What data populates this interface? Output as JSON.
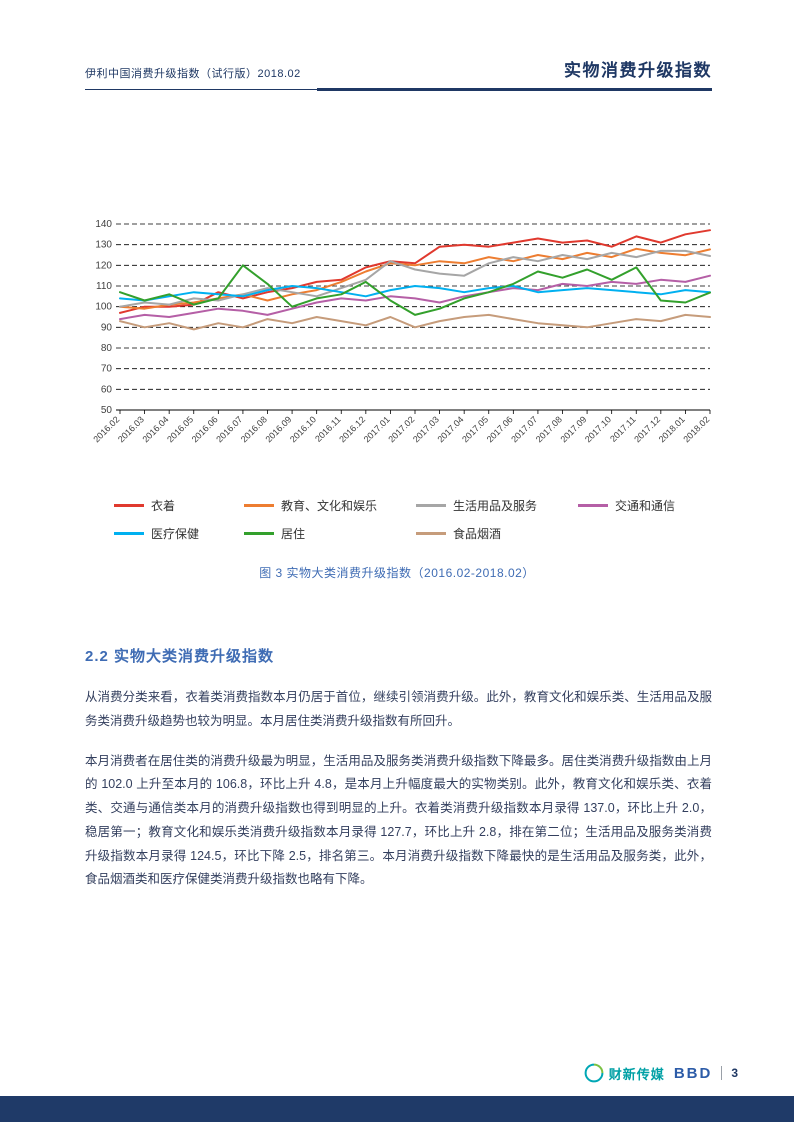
{
  "header": {
    "left_title": "伊利中国消费升级指数（试行版）2018.02",
    "right_title": "实物消费升级指数"
  },
  "chart_data": {
    "type": "line",
    "title": "实物大类消费升级指数",
    "xlabel": "",
    "ylabel": "",
    "ylim": [
      50,
      140
    ],
    "ytick_step": 10,
    "grid": "dashed-horizontal",
    "legend_position": "bottom",
    "x": [
      "2016.02",
      "2016.03",
      "2016.04",
      "2016.05",
      "2016.06",
      "2016.07",
      "2016.08",
      "2016.09",
      "2016.10",
      "2016.11",
      "2016.12",
      "2017.01",
      "2017.02",
      "2017.03",
      "2017.04",
      "2017.05",
      "2017.06",
      "2017.07",
      "2017.08",
      "2017.09",
      "2017.10",
      "2017.11",
      "2017.12",
      "2018.01",
      "2018.02"
    ],
    "series": [
      {
        "name": "衣着",
        "color": "#e0392e",
        "values": [
          97,
          100,
          100,
          101,
          107,
          104,
          107,
          109,
          112,
          113,
          119,
          122,
          121,
          129,
          130,
          129,
          131,
          133,
          131,
          132,
          129,
          134,
          131,
          135,
          137
        ]
      },
      {
        "name": "教育、文化和娱乐",
        "color": "#ed7d31",
        "values": [
          100,
          99,
          101,
          102,
          104,
          106,
          103,
          106,
          108,
          112,
          117,
          121,
          120,
          122,
          121,
          124,
          122,
          125,
          123,
          126,
          124,
          128,
          126,
          124.9,
          127.7
        ]
      },
      {
        "name": "生活用品及服务",
        "color": "#a6a6a6",
        "values": [
          100,
          102,
          101,
          104,
          103,
          106,
          109,
          107,
          105,
          109,
          113,
          122,
          118,
          116,
          115,
          121,
          124,
          122,
          125,
          123,
          126,
          124,
          127,
          127,
          124.5
        ]
      },
      {
        "name": "交通和通信",
        "color": "#b55fa6",
        "values": [
          94,
          96,
          95,
          97,
          99,
          98,
          96,
          99,
          102,
          104,
          103,
          105,
          104,
          102,
          105,
          107,
          109,
          108,
          111,
          110,
          112,
          111,
          113,
          112,
          115
        ]
      },
      {
        "name": "医疗保健",
        "color": "#00b0f0",
        "values": [
          104,
          103,
          105,
          107,
          106,
          105,
          108,
          110,
          109,
          107,
          105,
          108,
          110,
          109,
          107,
          109,
          110,
          107,
          108,
          109,
          108,
          107,
          106,
          108,
          107
        ]
      },
      {
        "name": "居住",
        "color": "#33a02c",
        "values": [
          107,
          103,
          106,
          101,
          104,
          120,
          111,
          100,
          104,
          106,
          112,
          103,
          96,
          99,
          104,
          107,
          111,
          117,
          114,
          118,
          113,
          119,
          103,
          102,
          106.8
        ]
      },
      {
        "name": "食品烟酒",
        "color": "#c69c7b",
        "values": [
          93,
          90,
          92,
          89,
          92,
          90,
          94,
          92,
          95,
          93,
          91,
          95,
          90,
          93,
          95,
          96,
          94,
          92,
          91,
          90,
          92,
          94,
          93,
          96,
          95
        ]
      }
    ]
  },
  "figure_caption": "图 3 实物大类消费升级指数（2016.02-2018.02）",
  "section": {
    "heading": "2.2 实物大类消费升级指数",
    "paragraphs": [
      "从消费分类来看，衣着类消费指数本月仍居于首位，继续引领消费升级。此外，教育文化和娱乐类、生活用品及服务类消费升级趋势也较为明显。本月居住类消费升级指数有所回升。",
      "本月消费者在居住类的消费升级最为明显，生活用品及服务类消费升级指数下降最多。居住类消费升级指数由上月的 102.0 上升至本月的 106.8，环比上升 4.8，是本月上升幅度最大的实物类别。此外，教育文化和娱乐类、衣着类、交通与通信类本月的消费升级指数也得到明显的上升。衣着类消费升级指数本月录得 137.0，环比上升 2.0，稳居第一；教育文化和娱乐类消费升级指数本月录得 127.7，环比上升 2.8，排在第二位；生活用品及服务类消费升级指数本月录得 124.5，环比下降 2.5，排名第三。本月消费升级指数下降最快的是生活用品及服务类，此外，食品烟酒类和医疗保健类消费升级指数也略有下降。"
    ]
  },
  "footer": {
    "caixin_label": "财新传媒",
    "bbd_label": "BBD",
    "page_number": "3"
  }
}
